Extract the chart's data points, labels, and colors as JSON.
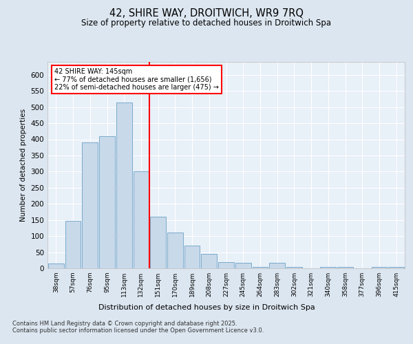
{
  "title_line1": "42, SHIRE WAY, DROITWICH, WR9 7RQ",
  "title_line2": "Size of property relative to detached houses in Droitwich Spa",
  "xlabel": "Distribution of detached houses by size in Droitwich Spa",
  "ylabel": "Number of detached properties",
  "bin_labels": [
    "38sqm",
    "57sqm",
    "76sqm",
    "95sqm",
    "113sqm",
    "132sqm",
    "151sqm",
    "170sqm",
    "189sqm",
    "208sqm",
    "227sqm",
    "245sqm",
    "264sqm",
    "283sqm",
    "302sqm",
    "321sqm",
    "340sqm",
    "358sqm",
    "377sqm",
    "396sqm",
    "415sqm"
  ],
  "bar_values": [
    15,
    148,
    390,
    410,
    515,
    300,
    160,
    110,
    70,
    45,
    20,
    18,
    5,
    18,
    5,
    0,
    5,
    5,
    0,
    5,
    5
  ],
  "bar_color": "#c8d9ea",
  "bar_edge_color": "#7aaaca",
  "vline_color": "red",
  "annotation_text": "42 SHIRE WAY: 145sqm\n← 77% of detached houses are smaller (1,656)\n22% of semi-detached houses are larger (475) →",
  "annotation_box_color": "white",
  "annotation_box_edge": "red",
  "ylim": [
    0,
    640
  ],
  "yticks": [
    0,
    50,
    100,
    150,
    200,
    250,
    300,
    350,
    400,
    450,
    500,
    550,
    600
  ],
  "background_color": "#dce6f0",
  "plot_bg_color": "#e8f0f8",
  "footer_text": "Contains HM Land Registry data © Crown copyright and database right 2025.\nContains public sector information licensed under the Open Government Licence v3.0.",
  "grid_color": "white",
  "vline_pos": 5.5
}
